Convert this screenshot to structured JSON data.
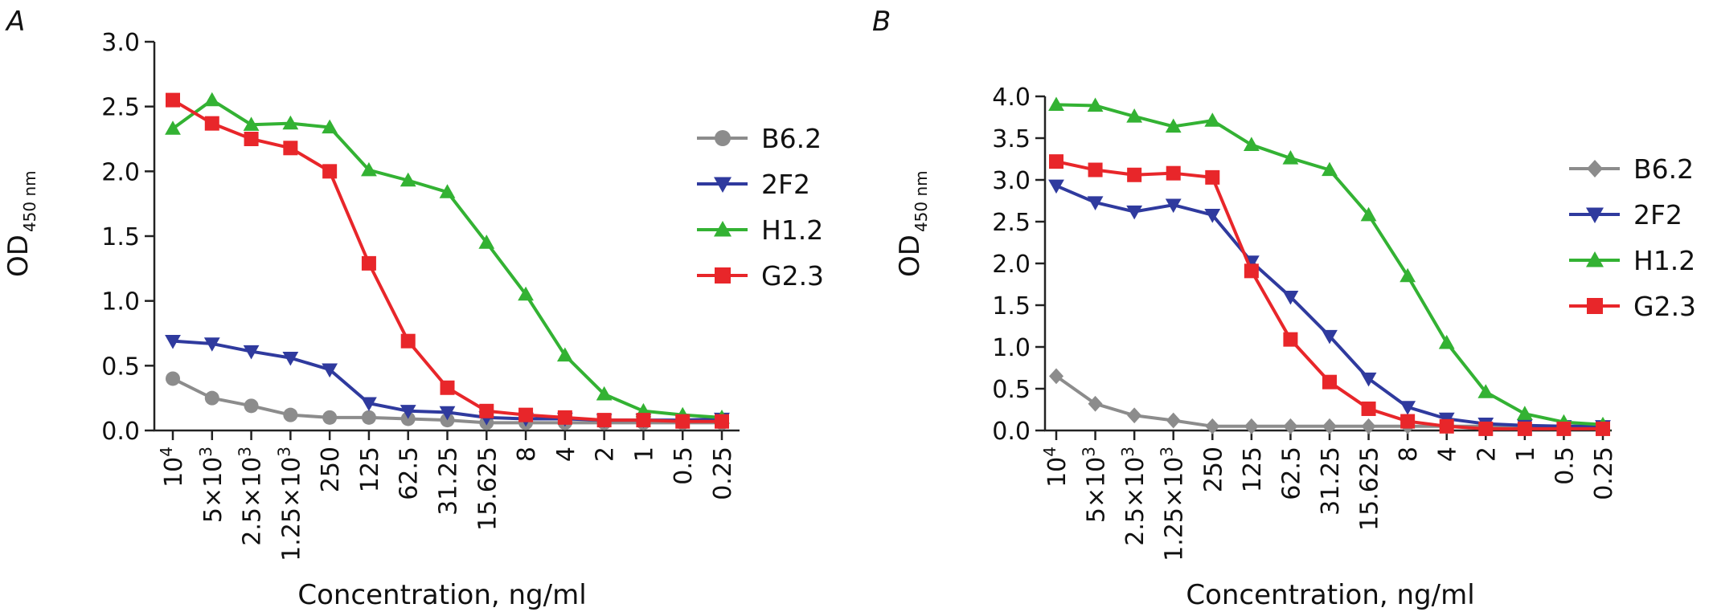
{
  "chart_data": [
    {
      "type": "line",
      "panel_label": "A",
      "ylabel": "OD",
      "ylabel_sub": "450 nm",
      "xlabel": "Concentration, ng/ml",
      "ylim": [
        0,
        3.0
      ],
      "yticks": [
        "0.0",
        "0.5",
        "1.0",
        "1.5",
        "2.0",
        "2.5",
        "3.0"
      ],
      "categories": [
        "10^4",
        "5×10^3",
        "2.5×10^3",
        "1.25×10^3",
        "250",
        "125",
        "62.5",
        "31.25",
        "15.625",
        "8",
        "4",
        "2",
        "1",
        "0.5",
        "0.25"
      ],
      "legend_position": "right",
      "grid": false,
      "series": [
        {
          "name": "B6.2",
          "color": "#8c8c8c",
          "marker": "circle",
          "values": [
            0.4,
            0.25,
            0.19,
            0.12,
            0.1,
            0.1,
            0.09,
            0.08,
            0.06,
            0.06,
            0.06,
            0.06,
            0.06,
            0.06,
            0.06
          ]
        },
        {
          "name": "2F2",
          "color": "#2f3a9e",
          "marker": "triangle-down",
          "values": [
            0.69,
            0.67,
            0.61,
            0.56,
            0.47,
            0.21,
            0.15,
            0.14,
            0.1,
            0.09,
            0.09,
            0.08,
            0.08,
            0.08,
            0.09
          ]
        },
        {
          "name": "H1.2",
          "color": "#33b233",
          "marker": "triangle-up",
          "values": [
            2.33,
            2.55,
            2.36,
            2.37,
            2.34,
            2.01,
            1.93,
            1.84,
            1.45,
            1.05,
            0.58,
            0.28,
            0.15,
            0.12,
            0.1
          ]
        },
        {
          "name": "G2.3",
          "color": "#e8262a",
          "marker": "square",
          "values": [
            2.55,
            2.37,
            2.25,
            2.18,
            2.0,
            1.29,
            0.69,
            0.33,
            0.15,
            0.12,
            0.1,
            0.08,
            0.08,
            0.07,
            0.07
          ]
        }
      ]
    },
    {
      "type": "line",
      "panel_label": "B",
      "ylabel": "OD",
      "ylabel_sub": "450 nm",
      "xlabel": "Concentration, ng/ml",
      "ylim": [
        0,
        4.0
      ],
      "yticks": [
        "0.0",
        "0.5",
        "1.0",
        "1.5",
        "2.0",
        "2.5",
        "3.0",
        "3.5",
        "4.0"
      ],
      "categories": [
        "10^4",
        "5×10^3",
        "2.5×10^3",
        "1.25×10^3",
        "250",
        "125",
        "62.5",
        "31.25",
        "15.625",
        "8",
        "4",
        "2",
        "1",
        "0.5",
        "0.25"
      ],
      "legend_position": "right",
      "grid": false,
      "series": [
        {
          "name": "B6.2",
          "color": "#8c8c8c",
          "marker": "diamond",
          "values": [
            0.65,
            0.32,
            0.18,
            0.12,
            0.05,
            0.05,
            0.05,
            0.05,
            0.05,
            0.05,
            0.05,
            0.05,
            0.05,
            0.05,
            0.05
          ]
        },
        {
          "name": "2F2",
          "color": "#2f3a9e",
          "marker": "triangle-down",
          "values": [
            2.93,
            2.73,
            2.62,
            2.7,
            2.58,
            2.02,
            1.6,
            1.13,
            0.62,
            0.28,
            0.14,
            0.08,
            0.06,
            0.05,
            0.05
          ]
        },
        {
          "name": "H1.2",
          "color": "#33b233",
          "marker": "triangle-up",
          "values": [
            3.9,
            3.89,
            3.76,
            3.64,
            3.71,
            3.42,
            3.26,
            3.12,
            2.58,
            1.85,
            1.05,
            0.46,
            0.2,
            0.1,
            0.07
          ]
        },
        {
          "name": "G2.3",
          "color": "#e8262a",
          "marker": "square",
          "values": [
            3.22,
            3.12,
            3.06,
            3.08,
            3.03,
            1.91,
            1.09,
            0.58,
            0.26,
            0.11,
            0.05,
            0.02,
            0.02,
            0.02,
            0.02
          ]
        }
      ]
    }
  ]
}
